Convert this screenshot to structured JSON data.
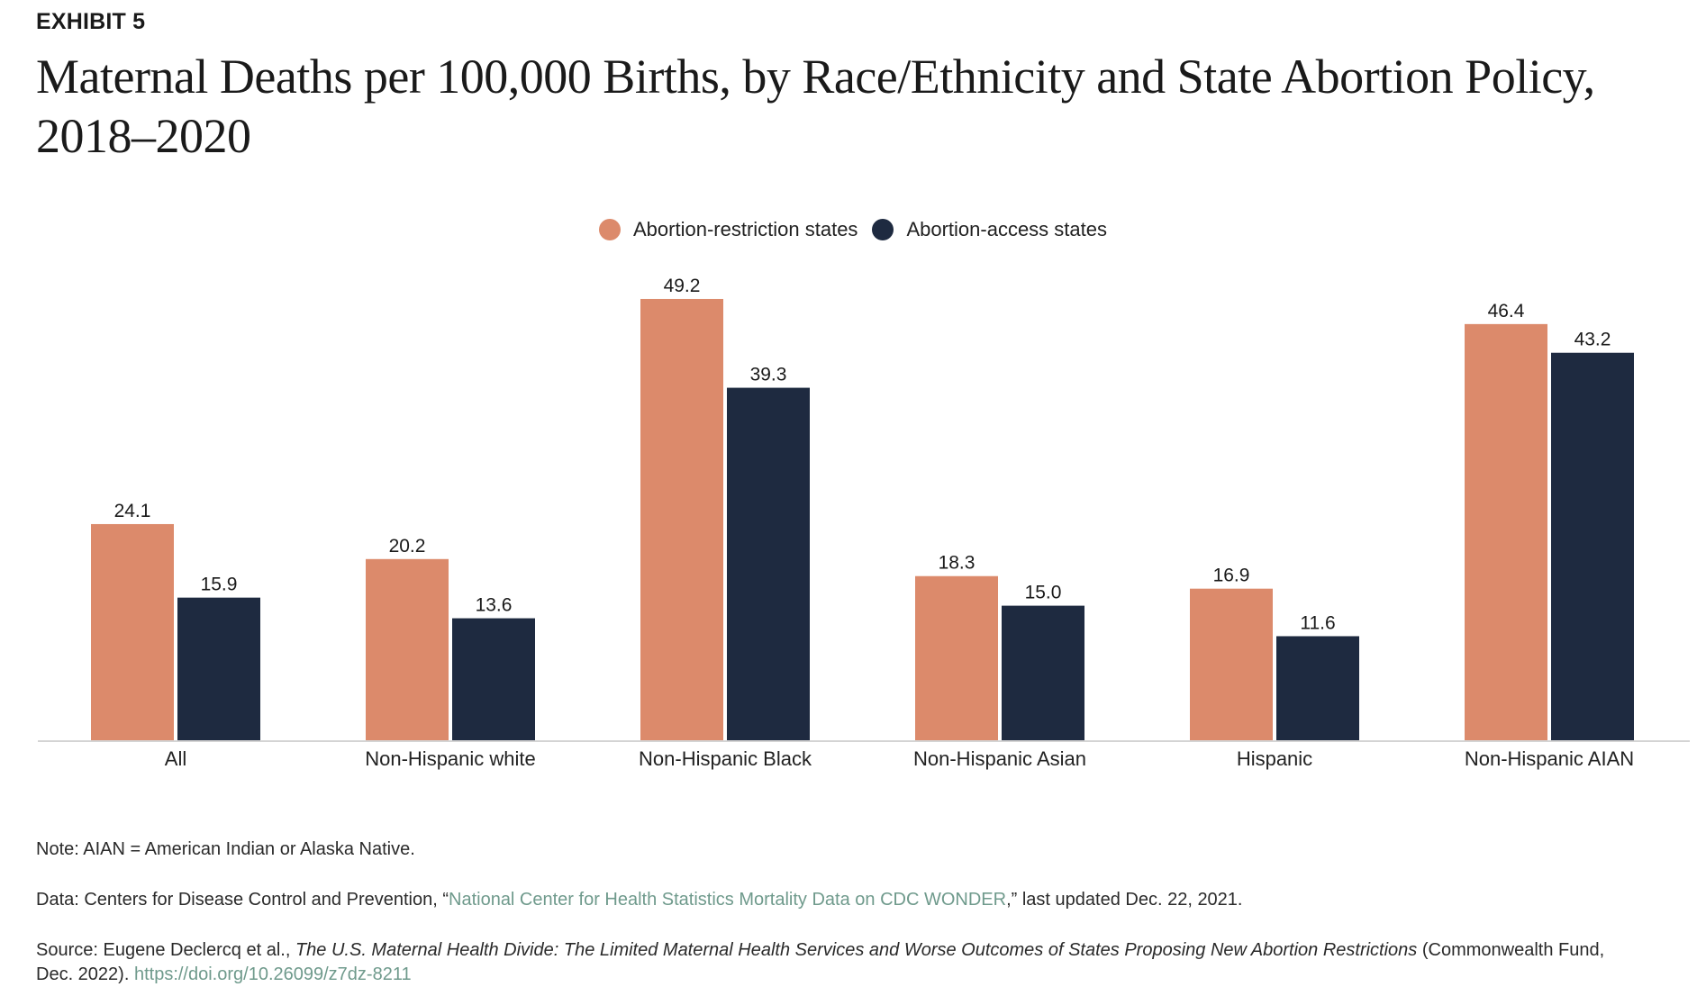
{
  "header": {
    "exhibit": "EXHIBIT 5",
    "title": "Maternal Deaths per 100,000 Births, by Race/Ethnicity and State Abortion Policy, 2018–2020"
  },
  "colors": {
    "restriction": "#dc8a6b",
    "access": "#1e2a40",
    "axis": "#d4d4d4",
    "link": "#6f9a8c"
  },
  "chart_data": {
    "type": "bar",
    "title": "Maternal Deaths per 100,000 Births, by Race/Ethnicity and State Abortion Policy, 2018–2020",
    "xlabel": "",
    "ylabel": "",
    "ylim": [
      0,
      50
    ],
    "grid": false,
    "legend_position": "top-center",
    "categories": [
      "All",
      "Non-Hispanic white",
      "Non-Hispanic Black",
      "Non-Hispanic Asian",
      "Hispanic",
      "Non-Hispanic AIAN"
    ],
    "series": [
      {
        "name": "Abortion-restriction states",
        "color": "#dc8a6b",
        "values": [
          24.1,
          20.2,
          49.2,
          18.3,
          16.9,
          46.4
        ],
        "labels": [
          "24.1",
          "20.2",
          "49.2",
          "18.3",
          "16.9",
          "46.4"
        ]
      },
      {
        "name": "Abortion-access states",
        "color": "#1e2a40",
        "values": [
          15.9,
          13.6,
          39.3,
          15.0,
          11.6,
          43.2
        ],
        "labels": [
          "15.9",
          "13.6",
          "39.3",
          "15.0",
          "11.6",
          "43.2"
        ]
      }
    ]
  },
  "notes": {
    "note": "Note: AIAN = American Indian or Alaska Native.",
    "data_prefix": "Data: Centers for Disease Control and Prevention, “",
    "data_link": "National Center for Health Statistics Mortality Data on CDC WONDER",
    "data_suffix": ",” last updated Dec. 22, 2021.",
    "source_prefix": "Source: Eugene Declercq et al., ",
    "source_title": "The U.S. Maternal Health Divide: The Limited Maternal Health Services and Worse Outcomes of States Proposing New Abortion Restrictions",
    "source_suffix": " (Commonwealth Fund, Dec. 2022). ",
    "source_link": "https://doi.org/10.26099/z7dz-8211"
  }
}
